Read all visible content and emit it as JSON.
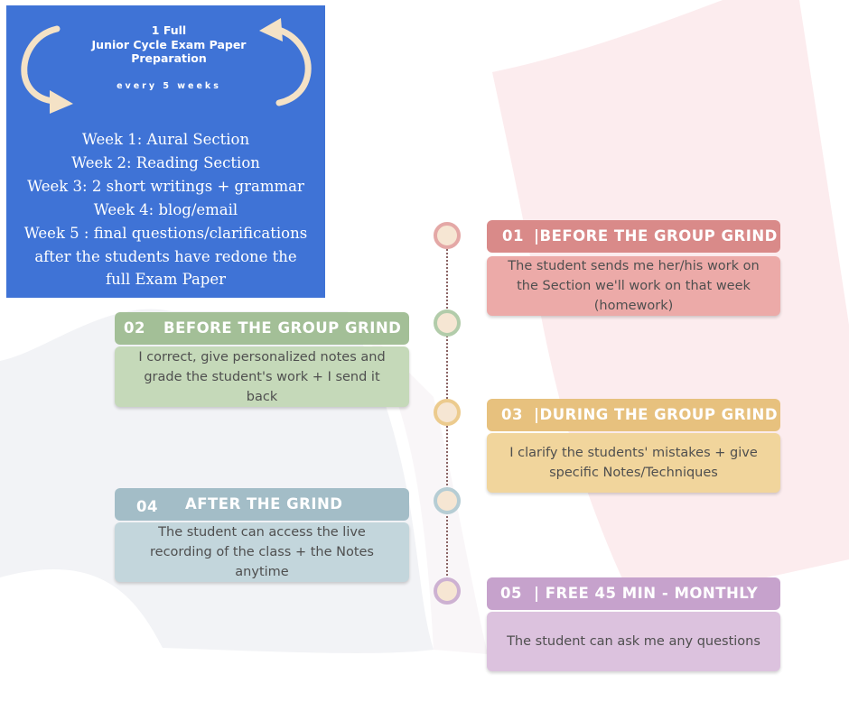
{
  "header": {
    "title_lines": [
      "1 Full",
      "Junior Cycle Exam Paper",
      "Preparation"
    ],
    "subtitle": "every 5 weeks",
    "weeks": [
      "Week 1: Aural Section",
      "Week 2: Reading Section",
      "Week 3: 2 short writings + grammar",
      "Week 4: blog/email",
      "Week 5 : final questions/clarifications",
      "after the students have redone the",
      "full Exam Paper"
    ],
    "colors": {
      "panel": "#3f73d6",
      "text": "#ffffff"
    }
  },
  "steps": [
    {
      "number": "01",
      "title": "|BEFORE THE GROUP GRIND",
      "body": "The student sends me her/his work on the Section we'll work on that week (homework)",
      "head_color": "#d98a89",
      "body_color": "#ecaaa8"
    },
    {
      "number": "02",
      "title": "BEFORE THE GROUP GRIND",
      "body": "I correct, give personalized notes and grade the student's work + I send it back",
      "head_color": "#a3bf97",
      "body_color": "#c5d9b9"
    },
    {
      "number": "03",
      "title": "|DURING THE GROUP GRIND",
      "body": "I clarify the students' mistakes + give specific Notes/Techniques",
      "head_color": "#e7c17e",
      "body_color": "#f1d59c"
    },
    {
      "number": "04",
      "title": "AFTER THE GRIND",
      "body": "The student can access the live recording of the class + the Notes anytime",
      "head_color": "#a3bdc7",
      "body_color": "#c3d6dc"
    },
    {
      "number": "05",
      "title": "| FREE 45 MIN - MONTHLY",
      "body": "The student can ask me any questions",
      "head_color": "#c6a2cc",
      "body_color": "#dcc2de"
    }
  ],
  "timeline": {
    "node_fill": "#f6e6d3",
    "node_rings": [
      "#e4a8a6",
      "#b2ccaa",
      "#eccb8e",
      "#b6cdd4",
      "#cdb1d2"
    ],
    "line_color": "#8a6464"
  }
}
